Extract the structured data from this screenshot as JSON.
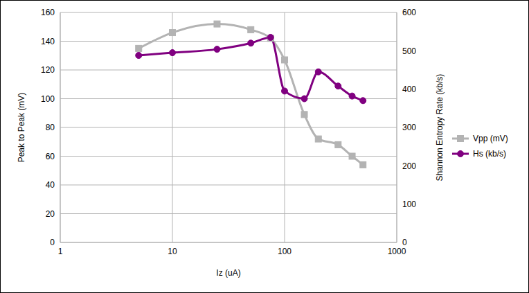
{
  "chart_data": {
    "type": "line",
    "xlabel": "Iz (uA)",
    "ylabel": "Peak to Peak (mV)",
    "y2label": "Shannon Entropy Rate (kb/s)",
    "x": [
      5,
      10,
      25,
      50,
      75,
      100,
      150,
      200,
      300,
      400,
      500
    ],
    "series": [
      {
        "name": "Vpp (mV)",
        "color": "#b3b3b3",
        "marker": "square",
        "line_style": "smooth",
        "values": [
          135,
          146,
          152,
          148,
          142,
          127,
          89,
          72,
          68,
          60,
          54
        ]
      },
      {
        "name": "Hs (kb/s)",
        "color": "#800080",
        "marker": "circle",
        "line_style": "smooth",
        "axis": "y2",
        "values": [
          488,
          495,
          504,
          520,
          535,
          395,
          375,
          445,
          408,
          382,
          370
        ]
      }
    ],
    "xlim": [
      1,
      1000
    ],
    "xticks": [
      1,
      10,
      100,
      1000
    ],
    "ylim": [
      0,
      160
    ],
    "yticks": [
      0,
      20,
      40,
      60,
      80,
      100,
      120,
      140,
      160
    ],
    "y2lim": [
      0,
      600
    ],
    "y2ticks": [
      0,
      100,
      200,
      300,
      400,
      500,
      600
    ],
    "log": "x",
    "grid": true,
    "legend": "right"
  }
}
